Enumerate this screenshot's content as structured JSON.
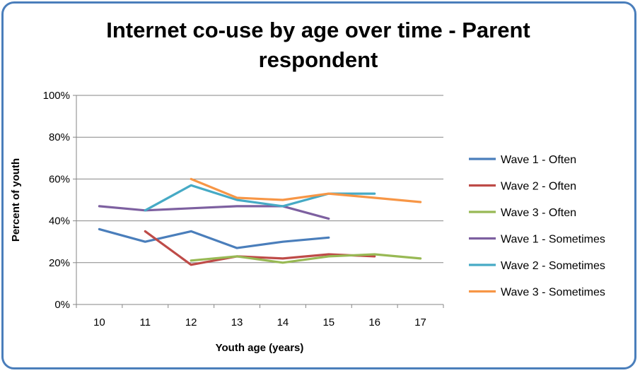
{
  "chart_data": {
    "type": "line",
    "title": "Internet co-use by age over time - Parent respondent",
    "xlabel": "Youth age (years)",
    "ylabel": "Percent of youth",
    "categories": [
      "10",
      "11",
      "12",
      "13",
      "14",
      "15",
      "16",
      "17"
    ],
    "ylim": [
      0,
      100
    ],
    "yticks": [
      "0%",
      "20%",
      "40%",
      "60%",
      "80%",
      "100%"
    ],
    "grid": "horizontal",
    "legend_position": "right",
    "series": [
      {
        "name": "Wave 1 - Often",
        "color": "#4a7ebb",
        "values": [
          36,
          30,
          35,
          27,
          30,
          32,
          null,
          null
        ]
      },
      {
        "name": "Wave 2 - Often",
        "color": "#be4b48",
        "values": [
          null,
          35,
          19,
          23,
          22,
          24,
          23,
          null
        ]
      },
      {
        "name": "Wave 3 - Often",
        "color": "#98b954",
        "values": [
          null,
          null,
          21,
          23,
          20,
          23,
          24,
          22
        ]
      },
      {
        "name": "Wave 1 - Sometimes",
        "color": "#7d60a0",
        "values": [
          47,
          45,
          46,
          47,
          47,
          41,
          null,
          null
        ]
      },
      {
        "name": "Wave 2 - Sometimes",
        "color": "#46aac5",
        "values": [
          null,
          45,
          57,
          50,
          47,
          53,
          53,
          null
        ]
      },
      {
        "name": "Wave 3 - Sometimes",
        "color": "#f79646",
        "values": [
          null,
          null,
          60,
          51,
          50,
          53,
          51,
          49
        ]
      }
    ]
  }
}
